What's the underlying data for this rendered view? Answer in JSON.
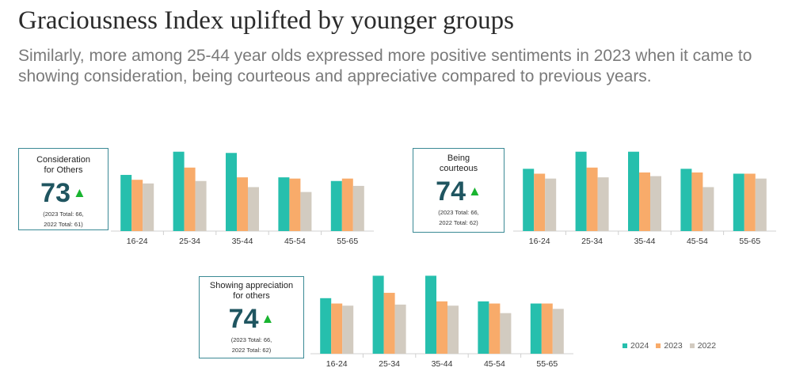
{
  "title": "Graciousness Index uplifted by younger groups",
  "subtitle": "Similarly, more among 25-44 year olds expressed more positive sentiments in 2023 when it came to showing consideration, being courteous and appreciative compared to previous years.",
  "colors": {
    "2024": "#26bfad",
    "2023": "#f8ab6a",
    "2022": "#d2cbc0",
    "kpi_border": "#3b8a95",
    "kpi_value": "#1f5560",
    "arrow": "#19b430"
  },
  "kpis": [
    {
      "label_line1": "Consideration",
      "label_line2": "for Others",
      "value": "73",
      "arrow": "▲",
      "note_line1": "(2023 Total: 66,",
      "note_line2": "2022 Total: 61)"
    },
    {
      "label_line1": "Being",
      "label_line2": "courteous",
      "value": "74",
      "arrow": "▲",
      "note_line1": "(2023 Total: 66,",
      "note_line2": "2022 Total: 62)"
    },
    {
      "label_line1": "Showing appreciation",
      "label_line2": "for others",
      "value": "74",
      "arrow": "▲",
      "note_line1": "(2023 Total: 66,",
      "note_line2": "2022 Total: 62)"
    }
  ],
  "legend": [
    "2024",
    "2023",
    "2022"
  ],
  "chart_data": [
    {
      "type": "bar",
      "title": "Consideration for Others",
      "categories": [
        "16-24",
        "25-34",
        "35-44",
        "45-54",
        "55-65"
      ],
      "series": [
        {
          "name": "2024",
          "values": [
            66,
            85,
            84,
            64,
            61
          ]
        },
        {
          "name": "2023",
          "values": [
            62,
            72,
            64,
            63,
            63
          ]
        },
        {
          "name": "2022",
          "values": [
            59,
            61,
            56,
            52,
            57
          ]
        }
      ],
      "ylim": [
        20,
        90
      ]
    },
    {
      "type": "bar",
      "title": "Being courteous",
      "categories": [
        "16-24",
        "25-34",
        "35-44",
        "45-54",
        "55-65"
      ],
      "series": [
        {
          "name": "2024",
          "values": [
            71,
            85,
            85,
            71,
            67
          ]
        },
        {
          "name": "2023",
          "values": [
            67,
            72,
            68,
            68,
            67
          ]
        },
        {
          "name": "2022",
          "values": [
            63,
            64,
            65,
            56,
            63
          ]
        }
      ],
      "ylim": [
        20,
        90
      ]
    },
    {
      "type": "bar",
      "title": "Showing appreciation for others",
      "categories": [
        "16-24",
        "25-34",
        "35-44",
        "45-54",
        "55-65"
      ],
      "series": [
        {
          "name": "2024",
          "values": [
            72,
            93,
            93,
            69,
            67
          ]
        },
        {
          "name": "2023",
          "values": [
            67,
            77,
            69,
            67,
            67
          ]
        },
        {
          "name": "2022",
          "values": [
            65,
            66,
            65,
            58,
            62
          ]
        }
      ],
      "ylim": [
        20,
        100
      ]
    }
  ]
}
